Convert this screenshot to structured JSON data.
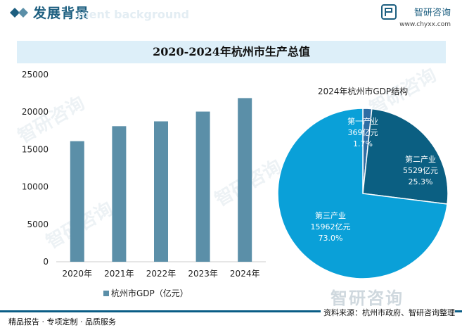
{
  "header": {
    "title": "发展背景",
    "watermark": "ment background",
    "brand_name": "智研咨询",
    "brand_site": "www.chyxx.com"
  },
  "main_title": "2020-2024年杭州市生产总值",
  "watermark_text": "智研咨询",
  "footer": {
    "left": "精品报告 · 专项定制 · 品质服务",
    "right": "资料来源：杭州市政府、智研咨询整理"
  },
  "colors": {
    "brand": "#1d5f80",
    "bar": "#5b8fa8",
    "pie_primary": "#2e6da4",
    "pie_secondary": "#0b5f82",
    "pie_tertiary": "#0aa0d8",
    "footer_line": "#0a5d86"
  },
  "chart_data": [
    {
      "type": "bar",
      "categories": [
        "2020年",
        "2021年",
        "2022年",
        "2023年",
        "2024年"
      ],
      "series": [
        {
          "name": "杭州市GDP（亿元）",
          "values": [
            16106,
            18109,
            18753,
            20059,
            21860
          ]
        }
      ],
      "yticks": [
        "0",
        "5000",
        "10000",
        "15000",
        "20000",
        "25000"
      ],
      "ylim": [
        0,
        25000
      ],
      "grid": false,
      "legend": "bottom"
    },
    {
      "type": "pie",
      "title": "2024年杭州市GDP结构",
      "slices": [
        {
          "name": "第一产业",
          "value": 369,
          "value_label": "369亿元",
          "percent": "1.7%"
        },
        {
          "name": "第二产业",
          "value": 5529,
          "value_label": "5529亿元",
          "percent": "25.3%"
        },
        {
          "name": "第三产业",
          "value": 15962,
          "value_label": "15962亿元",
          "percent": "73.0%"
        }
      ]
    }
  ]
}
